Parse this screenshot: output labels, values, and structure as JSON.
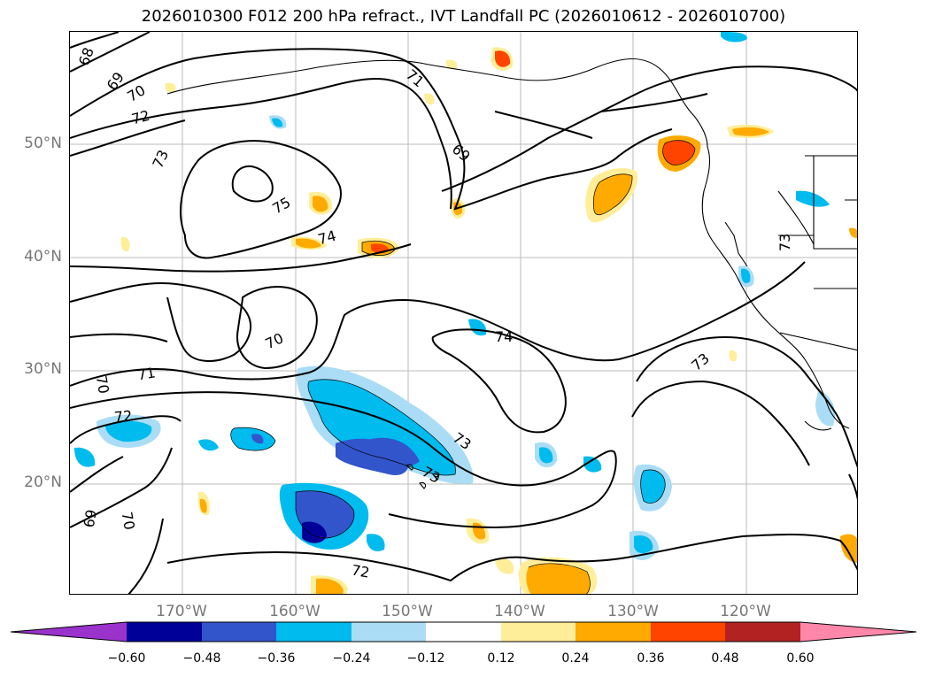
{
  "title": "2026010300 F012 200 hPa refract., IVT Landfall PC (2026010612 - 2026010700)",
  "lat_labels": [
    "50°N",
    "40°N",
    "30°N",
    "20°N"
  ],
  "lon_labels": [
    "170°W",
    "160°W",
    "150°W",
    "140°W",
    "130°W",
    "120°W"
  ],
  "colorbar": {
    "ticks": [
      "−0.60",
      "−0.48",
      "−0.36",
      "−0.24",
      "−0.12",
      "0.12",
      "0.24",
      "0.36",
      "0.48",
      "0.60"
    ],
    "colors": [
      "#9933cc",
      "#000099",
      "#3355cc",
      "#00bbee",
      "#aaddf5",
      "#ffffff",
      "#ffee99",
      "#ffaa00",
      "#ff4400",
      "#b22222",
      "#ff88aa"
    ]
  },
  "map": {
    "projection": "cylindrical",
    "lon_range": [
      -180,
      -110
    ],
    "lat_range": [
      10,
      60
    ],
    "gridlines": true,
    "contour_labels": [
      "68",
      "69",
      "70",
      "72",
      "73",
      "75",
      "74",
      "70",
      "71",
      "72",
      "70",
      "69",
      "70",
      "73",
      "74",
      "73",
      "72",
      "71",
      "69",
      "73",
      "73"
    ]
  }
}
